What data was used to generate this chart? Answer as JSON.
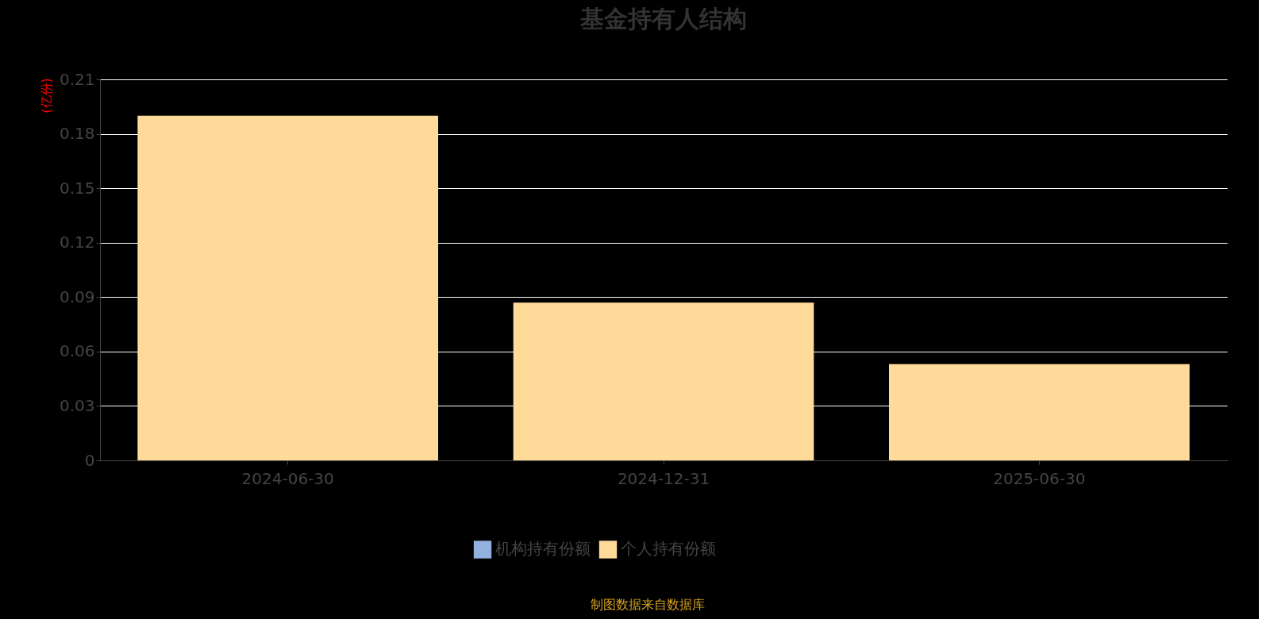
{
  "chart_data": {
    "type": "bar",
    "title": "基金持有人结构",
    "ylabel": "(亿份)",
    "categories": [
      "2024-06-30",
      "2024-12-31",
      "2025-06-30"
    ],
    "stacked": true,
    "series": [
      {
        "name": "机构持有份额",
        "color": "#93b1de",
        "values": [
          0,
          0,
          0
        ]
      },
      {
        "name": "个人持有份额",
        "color": "#ffda99",
        "values": [
          0.19,
          0.087,
          0.053
        ]
      }
    ],
    "ylim": [
      0,
      0.21
    ],
    "yticks": [
      0,
      0.03,
      0.06,
      0.09,
      0.12,
      0.15,
      0.18,
      0.21
    ],
    "grid": "y",
    "legend": "bottom",
    "annotations": [
      "制图数据来自数据库"
    ]
  }
}
